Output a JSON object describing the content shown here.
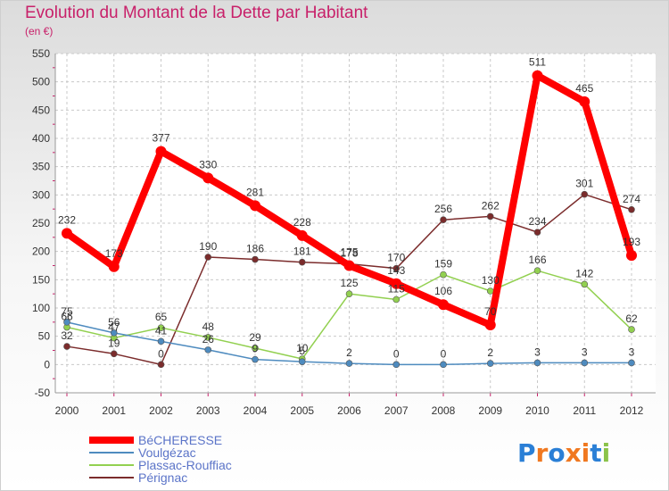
{
  "chart_data": {
    "type": "line",
    "title": "Evolution du Montant de la Dette par Habitant",
    "subtitle": "(en €)",
    "x": [
      "2000",
      "2001",
      "2002",
      "2003",
      "2004",
      "2005",
      "2006",
      "2007",
      "2008",
      "2009",
      "2010",
      "2011",
      "2012"
    ],
    "ylim": [
      -50,
      550
    ],
    "yticks": [
      -50,
      0,
      50,
      100,
      150,
      200,
      250,
      300,
      350,
      400,
      450,
      500,
      550
    ],
    "grid": true,
    "legend_position": "bottom-left",
    "series": [
      {
        "name": "BéCHERESSE",
        "color": "#ff0000",
        "values": [
          232,
          173,
          377,
          330,
          281,
          228,
          175,
          143,
          106,
          70,
          511,
          465,
          193
        ],
        "labels": [
          "232",
          "173",
          "377",
          "330",
          "281",
          "228",
          "175",
          "143",
          "106",
          "70",
          "511",
          "465",
          "193"
        ]
      },
      {
        "name": "Voulgézac",
        "color": "#4e8bbf",
        "values": [
          75,
          56,
          41,
          26,
          9,
          5,
          2,
          0,
          0,
          2,
          3,
          3,
          3
        ],
        "labels": [
          "75",
          "56",
          "41",
          "26",
          "9",
          "5",
          "2",
          "0",
          "0",
          "2",
          "3",
          "3",
          "3"
        ]
      },
      {
        "name": "Plassac-Rouffiac",
        "color": "#92d050",
        "values": [
          66,
          47,
          65,
          48,
          29,
          10,
          125,
          115,
          159,
          130,
          166,
          142,
          62
        ],
        "labels": [
          "66",
          "47",
          "65",
          "48",
          "29",
          "10",
          "125",
          "115",
          "159",
          "130",
          "166",
          "142",
          "62"
        ]
      },
      {
        "name": "Pérignac",
        "color": "#7b2c2c",
        "values": [
          32,
          19,
          0,
          190,
          186,
          181,
          178,
          170,
          256,
          262,
          234,
          301,
          274
        ],
        "labels": [
          "32",
          "19",
          "0",
          "190",
          "186",
          "181",
          "178",
          "170",
          "256",
          "262",
          "234",
          "301",
          "274"
        ]
      }
    ]
  },
  "brand": {
    "name": "Proxiti"
  }
}
